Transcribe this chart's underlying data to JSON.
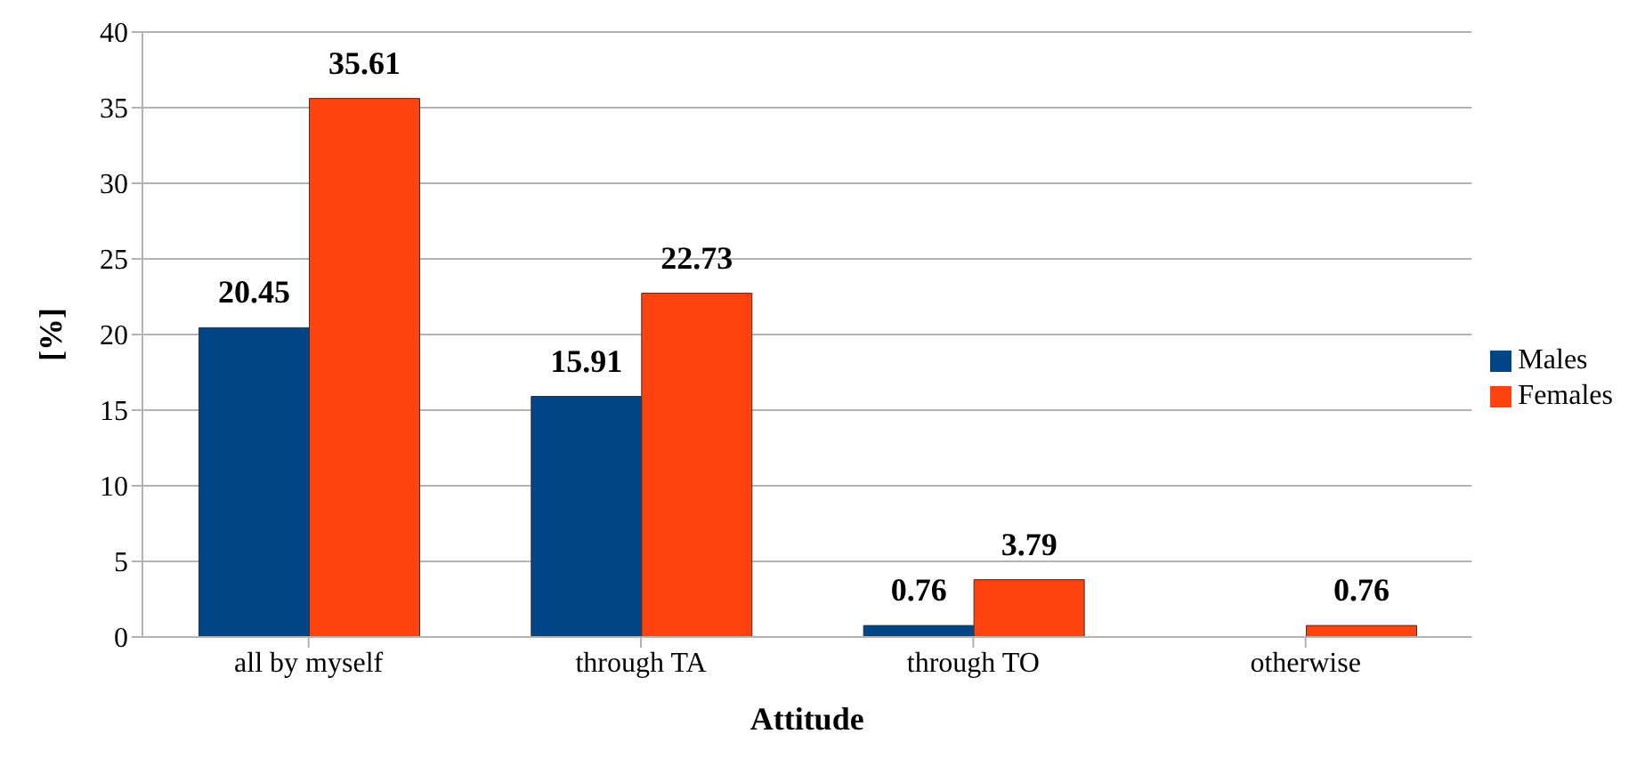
{
  "chart_data": {
    "type": "bar",
    "xlabel": "Attitude",
    "ylabel": "[%]",
    "categories": [
      "all by myself",
      "through TA",
      "through TO",
      "otherwise"
    ],
    "series": [
      {
        "name": "Males",
        "color": "#004586",
        "values": [
          20.45,
          15.91,
          0.76,
          0
        ],
        "value_labels": [
          "20.45",
          "15.91",
          "0.76",
          null
        ]
      },
      {
        "name": "Females",
        "color": "#ff420e",
        "values": [
          35.61,
          22.73,
          3.79,
          0.76
        ],
        "value_labels": [
          "35.61",
          "22.73",
          "3.79",
          "0.76"
        ]
      }
    ],
    "ylim": [
      0,
      40
    ],
    "yticks": [
      0,
      5,
      10,
      15,
      20,
      25,
      30,
      35,
      40
    ],
    "grid": "y",
    "legend": "right"
  }
}
